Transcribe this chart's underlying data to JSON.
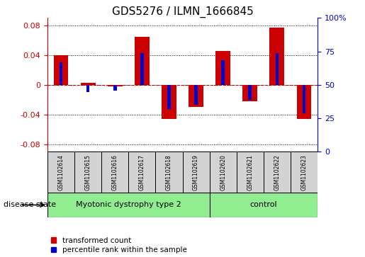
{
  "title": "GDS5276 / ILMN_1666845",
  "samples": [
    "GSM1102614",
    "GSM1102615",
    "GSM1102616",
    "GSM1102617",
    "GSM1102618",
    "GSM1102619",
    "GSM1102620",
    "GSM1102621",
    "GSM1102622",
    "GSM1102623"
  ],
  "red_values": [
    0.04,
    0.003,
    -0.002,
    0.065,
    -0.046,
    -0.03,
    0.046,
    -0.022,
    0.077,
    -0.046
  ],
  "blue_values": [
    0.03,
    -0.01,
    -0.008,
    0.043,
    -0.033,
    -0.027,
    0.033,
    -0.02,
    0.043,
    -0.038
  ],
  "ylim_left": [
    -0.09,
    0.09
  ],
  "ylim_right": [
    0,
    100
  ],
  "yticks_left": [
    -0.08,
    -0.04,
    0.0,
    0.04,
    0.08
  ],
  "yticks_right": [
    0,
    25,
    50,
    75,
    100
  ],
  "groups": [
    {
      "label": "Myotonic dystrophy type 2",
      "start": 0,
      "end": 5,
      "color": "#90EE90"
    },
    {
      "label": "control",
      "start": 6,
      "end": 9,
      "color": "#90EE90"
    }
  ],
  "disease_state_label": "disease state",
  "legend_items": [
    {
      "label": "transformed count",
      "color": "#CC0000"
    },
    {
      "label": "percentile rank within the sample",
      "color": "#0000CC"
    }
  ],
  "red_bar_width": 0.55,
  "blue_bar_width": 0.12,
  "red_color": "#CC0000",
  "blue_color": "#0000CC",
  "bg_color": "#FFFFFF",
  "plot_bg": "#FFFFFF",
  "grid_color": "#000000",
  "zero_line_color": "#CC0000",
  "label_color_left": "#CC0000",
  "label_color_right": "#0000CC",
  "label_fontsize": 8,
  "title_fontsize": 11,
  "sample_fontsize": 5.5
}
